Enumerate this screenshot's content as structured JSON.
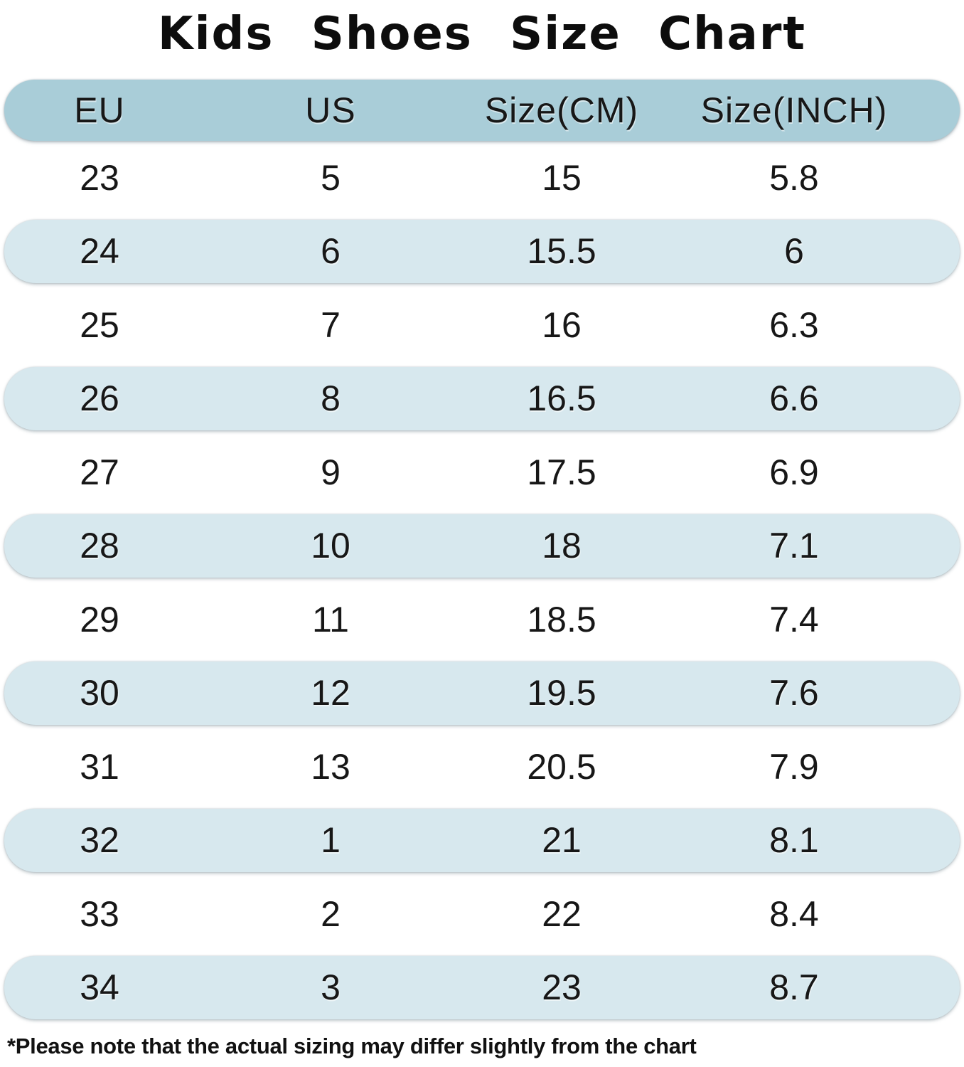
{
  "title": "Kids Shoes Size Chart",
  "footnote": "*Please note that the actual sizing may differ slightly from the chart",
  "colors": {
    "header_bg": "#a9cdd8",
    "row_alt_bg": "#d7e8ee",
    "text": "#171717",
    "background": "#ffffff"
  },
  "chart_data": {
    "type": "table",
    "title": "Kids Shoes Size Chart",
    "columns": [
      "EU",
      "US",
      "Size(CM)",
      "Size(INCH)"
    ],
    "rows": [
      [
        "23",
        "5",
        "15",
        "5.8"
      ],
      [
        "24",
        "6",
        "15.5",
        "6"
      ],
      [
        "25",
        "7",
        "16",
        "6.3"
      ],
      [
        "26",
        "8",
        "16.5",
        "6.6"
      ],
      [
        "27",
        "9",
        "17.5",
        "6.9"
      ],
      [
        "28",
        "10",
        "18",
        "7.1"
      ],
      [
        "29",
        "11",
        "18.5",
        "7.4"
      ],
      [
        "30",
        "12",
        "19.5",
        "7.6"
      ],
      [
        "31",
        "13",
        "20.5",
        "7.9"
      ],
      [
        "32",
        "1",
        "21",
        "8.1"
      ],
      [
        "33",
        "2",
        "22",
        "8.4"
      ],
      [
        "34",
        "3",
        "23",
        "8.7"
      ]
    ],
    "layout": {
      "striped": true,
      "shaded_row_indices": [
        1,
        3,
        5,
        7,
        9,
        11
      ],
      "header_style": "dark blue rounded pill",
      "stripe_style": "light blue rounded pill"
    }
  }
}
